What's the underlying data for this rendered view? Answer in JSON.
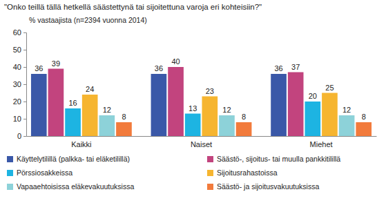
{
  "chart_data": {
    "type": "bar",
    "title": "\"Onko teillä tällä hetkellä säästettynä tai sijoitettuna varoja eri kohteisiin?\"",
    "subtitle": "% vastaajista (n=2394 vuonna 2014)",
    "categories": [
      "Kaikki",
      "Naiset",
      "Miehet"
    ],
    "series": [
      {
        "name": "Käyttelytilillä (palkka- tai eläketilillä)",
        "color": "#3a58a8",
        "values": [
          36,
          36,
          36
        ]
      },
      {
        "name": "Säästö-, sijoitus- tai muulla pankkitilillä",
        "color": "#c2447e",
        "values": [
          39,
          40,
          37
        ]
      },
      {
        "name": "Pörssiosakkeissa",
        "color": "#1db4e2",
        "values": [
          16,
          13,
          20
        ]
      },
      {
        "name": "Sijoitusrahastoissa",
        "color": "#f6b530",
        "values": [
          24,
          23,
          25
        ]
      },
      {
        "name": "Vapaaehtoisissa eläkevakuutuksissa",
        "color": "#8dd2d9",
        "values": [
          12,
          12,
          12
        ]
      },
      {
        "name": "Säästö- ja sijoitusvakuutuksissa",
        "color": "#f27b3c",
        "values": [
          8,
          8,
          8
        ]
      }
    ],
    "ylim": [
      0,
      60
    ],
    "yticks": [
      0,
      10,
      20,
      30,
      40,
      50,
      60
    ],
    "grid": false,
    "data_labels": true,
    "legend": "bottom"
  }
}
